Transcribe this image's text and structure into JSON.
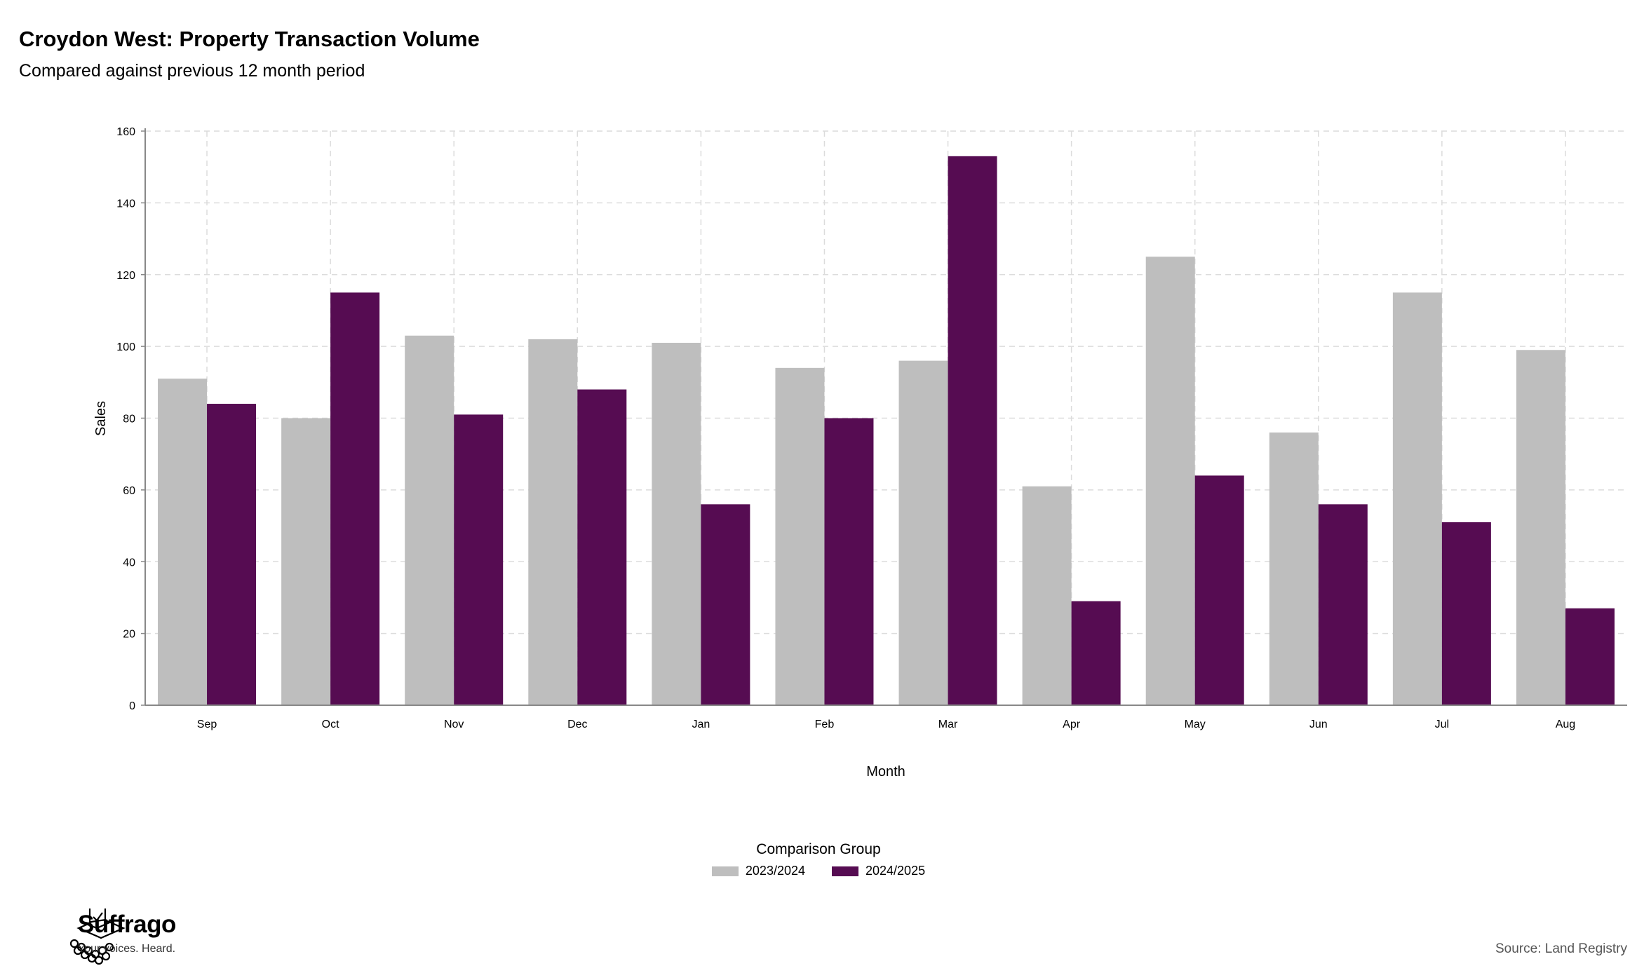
{
  "header": {
    "title": "Croydon West: Property Transaction Volume",
    "subtitle": "Compared against previous 12 month period"
  },
  "chart_data": {
    "type": "bar",
    "categories": [
      "Sep",
      "Oct",
      "Nov",
      "Dec",
      "Jan",
      "Feb",
      "Mar",
      "Apr",
      "May",
      "Jun",
      "Jul",
      "Aug"
    ],
    "series": [
      {
        "name": "2023/2024",
        "color": "#bebebe",
        "values": [
          91,
          80,
          103,
          102,
          101,
          94,
          96,
          61,
          125,
          76,
          115,
          99
        ]
      },
      {
        "name": "2024/2025",
        "color": "#560c52",
        "values": [
          84,
          115,
          81,
          88,
          56,
          80,
          153,
          29,
          64,
          56,
          51,
          27
        ]
      }
    ],
    "xlabel": "Month",
    "ylabel": "Sales",
    "ylim": [
      0,
      160
    ],
    "yticks": [
      0,
      20,
      40,
      60,
      80,
      100,
      120,
      140,
      160
    ],
    "grid": true,
    "legend": {
      "title": "Comparison Group",
      "placement": "bottom-center"
    }
  },
  "branding": {
    "name": "Suffrago",
    "tagline": "Your voices. Heard.",
    "icon": "ballot-box-icon"
  },
  "footer": {
    "source": "Source: Land Registry"
  }
}
